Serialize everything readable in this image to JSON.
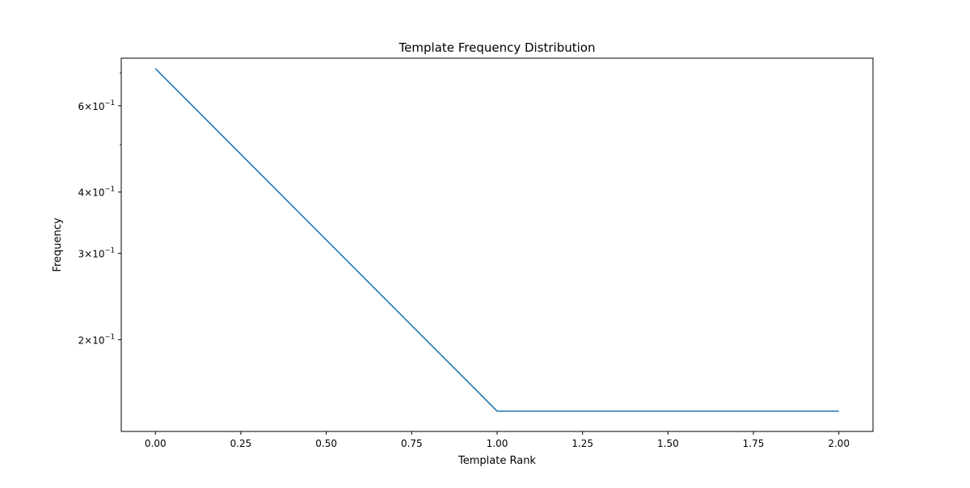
{
  "chart_data": {
    "type": "line",
    "title": "Template Frequency Distribution",
    "xlabel": "Template Rank",
    "ylabel": "Frequency",
    "x": [
      0,
      1,
      2
    ],
    "series": [
      {
        "values": [
          0.714,
          0.143,
          0.143
        ],
        "color": "#1f77b4"
      }
    ],
    "xlim": [
      -0.1,
      2.1
    ],
    "ylim": [
      0.13,
      0.75
    ],
    "yscale": "log",
    "xticks": [
      0.0,
      0.25,
      0.5,
      0.75,
      1.0,
      1.25,
      1.5,
      1.75,
      2.0
    ],
    "xtick_labels": [
      "0.00",
      "0.25",
      "0.50",
      "0.75",
      "1.00",
      "1.25",
      "1.50",
      "1.75",
      "2.00"
    ],
    "yticks_major": [
      0.6,
      0.4,
      0.3,
      0.2
    ],
    "ytick_labels": [
      {
        "base": "6",
        "exp": "−1"
      },
      {
        "base": "4",
        "exp": "−1"
      },
      {
        "base": "3",
        "exp": "−1"
      },
      {
        "base": "2",
        "exp": "−1"
      }
    ],
    "yticks_minor": [
      0.5,
      0.7
    ],
    "grid": false,
    "legend": false
  }
}
